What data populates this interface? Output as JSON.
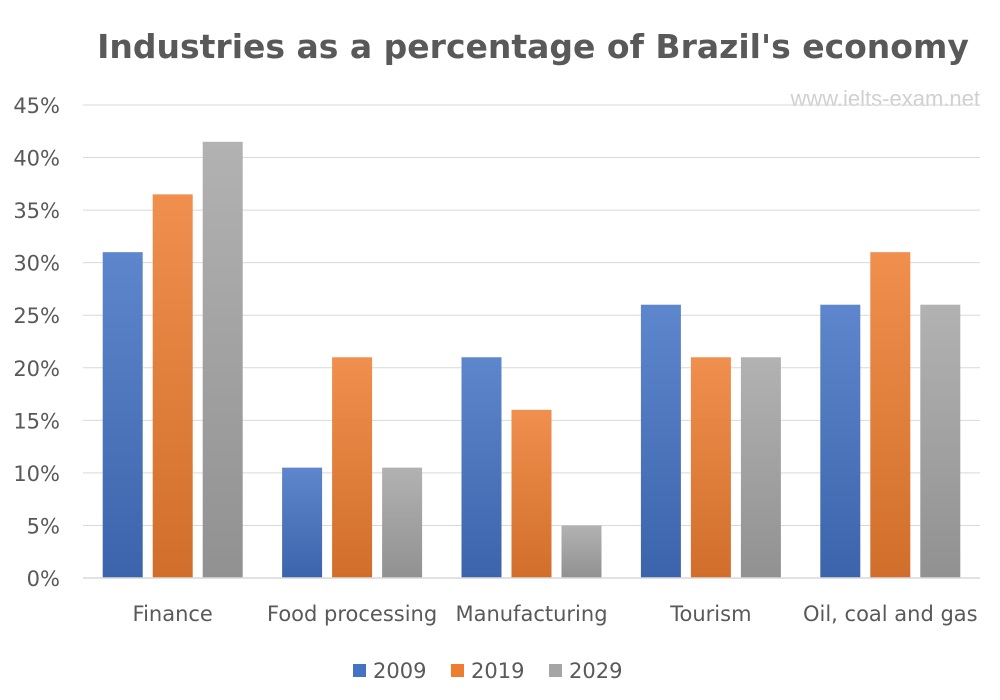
{
  "chart_data": {
    "type": "bar",
    "title": "Industries as a percentage of Brazil's economy",
    "watermark": "www.ielts-exam.net",
    "categories": [
      "Finance",
      "Food processing",
      "Manufacturing",
      "Tourism",
      "Oil, coal and gas"
    ],
    "series": [
      {
        "name": "2009",
        "color": "#4472C4",
        "values": [
          31,
          10.5,
          21,
          26,
          26
        ]
      },
      {
        "name": "2019",
        "color": "#ED7D31",
        "values": [
          36.5,
          21,
          16,
          21,
          31
        ]
      },
      {
        "name": "2029",
        "color": "#A5A5A5",
        "values": [
          41.5,
          10.5,
          5,
          21,
          26
        ]
      }
    ],
    "ylim": [
      0,
      45
    ],
    "yticks": [
      "0%",
      "5%",
      "10%",
      "15%",
      "20%",
      "25%",
      "30%",
      "35%",
      "40%",
      "45%"
    ],
    "grid": true,
    "legend_position": "bottom"
  }
}
